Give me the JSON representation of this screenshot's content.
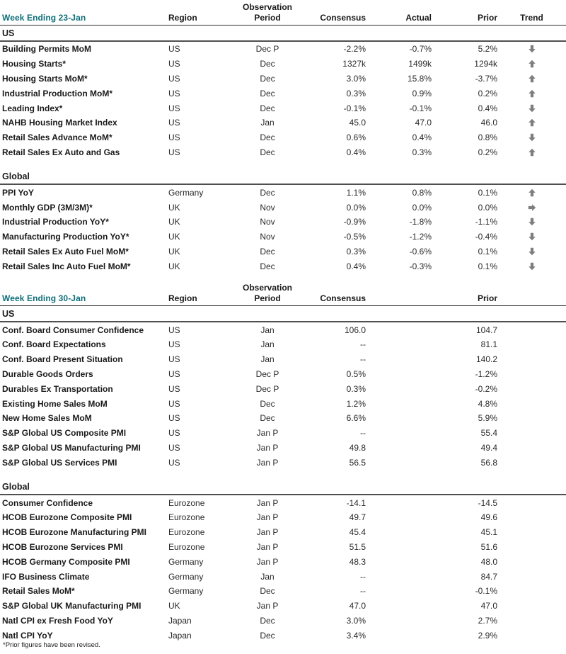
{
  "accent_color": "#0d6e78",
  "arrow_color": "#7e7e7e",
  "page": {
    "footnote": "*Prior figures have been revised."
  },
  "tables": [
    {
      "week_label": "Week Ending 23-Jan",
      "headers": {
        "region": "Region",
        "observation": "Observation",
        "period": "Period",
        "consensus": "Consensus",
        "actual": "Actual",
        "prior": "Prior",
        "trend": "Trend"
      },
      "sections": [
        {
          "label": "US",
          "rows": [
            {
              "indicator": "Building Permits MoM",
              "region": "US",
              "period": "Dec P",
              "consensus": "-2.2%",
              "actual": "-0.7%",
              "prior": "5.2%",
              "trend": "down"
            },
            {
              "indicator": "Housing Starts*",
              "region": "US",
              "period": "Dec",
              "consensus": "1327k",
              "actual": "1499k",
              "prior": "1294k",
              "trend": "up"
            },
            {
              "indicator": "Housing Starts MoM*",
              "region": "US",
              "period": "Dec",
              "consensus": "3.0%",
              "actual": "15.8%",
              "prior": "-3.7%",
              "trend": "up"
            },
            {
              "indicator": "Industrial Production MoM*",
              "region": "US",
              "period": "Dec",
              "consensus": "0.3%",
              "actual": "0.9%",
              "prior": "0.2%",
              "trend": "up"
            },
            {
              "indicator": "Leading Index*",
              "region": "US",
              "period": "Dec",
              "consensus": "-0.1%",
              "actual": "-0.1%",
              "prior": "0.4%",
              "trend": "down"
            },
            {
              "indicator": "NAHB Housing Market Index",
              "region": "US",
              "period": "Jan",
              "consensus": "45.0",
              "actual": "47.0",
              "prior": "46.0",
              "trend": "up"
            },
            {
              "indicator": "Retail Sales Advance MoM*",
              "region": "US",
              "period": "Dec",
              "consensus": "0.6%",
              "actual": "0.4%",
              "prior": "0.8%",
              "trend": "down"
            },
            {
              "indicator": "Retail Sales Ex Auto and Gas",
              "region": "US",
              "period": "Dec",
              "consensus": "0.4%",
              "actual": "0.3%",
              "prior": "0.2%",
              "trend": "up"
            }
          ]
        },
        {
          "label": "Global",
          "rows": [
            {
              "indicator": "PPI YoY",
              "region": "Germany",
              "period": "Dec",
              "consensus": "1.1%",
              "actual": "0.8%",
              "prior": "0.1%",
              "trend": "up"
            },
            {
              "indicator": "Monthly GDP (3M/3M)*",
              "region": "UK",
              "period": "Nov",
              "consensus": "0.0%",
              "actual": "0.0%",
              "prior": "0.0%",
              "trend": "flat"
            },
            {
              "indicator": "Industrial Production YoY*",
              "region": "UK",
              "period": "Nov",
              "consensus": "-0.9%",
              "actual": "-1.8%",
              "prior": "-1.1%",
              "trend": "down"
            },
            {
              "indicator": "Manufacturing Production YoY*",
              "region": "UK",
              "period": "Nov",
              "consensus": "-0.5%",
              "actual": "-1.2%",
              "prior": "-0.4%",
              "trend": "down"
            },
            {
              "indicator": "Retail Sales Ex Auto Fuel MoM*",
              "region": "UK",
              "period": "Dec",
              "consensus": "0.3%",
              "actual": "-0.6%",
              "prior": "0.1%",
              "trend": "down"
            },
            {
              "indicator": "Retail Sales Inc Auto Fuel MoM*",
              "region": "UK",
              "period": "Dec",
              "consensus": "0.4%",
              "actual": "-0.3%",
              "prior": "0.1%",
              "trend": "down"
            }
          ]
        }
      ]
    },
    {
      "week_label": "Week Ending 30-Jan",
      "headers": {
        "region": "Region",
        "observation": "Observation",
        "period": "Period",
        "consensus": "Consensus",
        "prior": "Prior"
      },
      "sections": [
        {
          "label": "US",
          "rows": [
            {
              "indicator": "Conf. Board Consumer Confidence",
              "region": "US",
              "period": "Jan",
              "consensus": "106.0",
              "prior": "104.7"
            },
            {
              "indicator": "Conf. Board Expectations",
              "region": "US",
              "period": "Jan",
              "consensus": "--",
              "prior": "81.1"
            },
            {
              "indicator": "Conf. Board Present Situation",
              "region": "US",
              "period": "Jan",
              "consensus": "--",
              "prior": "140.2"
            },
            {
              "indicator": "Durable Goods Orders",
              "region": "US",
              "period": "Dec P",
              "consensus": "0.5%",
              "prior": "-1.2%"
            },
            {
              "indicator": "Durables Ex Transportation",
              "region": "US",
              "period": "Dec P",
              "consensus": "0.3%",
              "prior": "-0.2%"
            },
            {
              "indicator": "Existing Home Sales MoM",
              "region": "US",
              "period": "Dec",
              "consensus": "1.2%",
              "prior": "4.8%"
            },
            {
              "indicator": "New Home Sales MoM",
              "region": "US",
              "period": "Dec",
              "consensus": "6.6%",
              "prior": "5.9%"
            },
            {
              "indicator": "S&P Global US Composite PMI",
              "region": "US",
              "period": "Jan P",
              "consensus": "--",
              "prior": "55.4"
            },
            {
              "indicator": "S&P Global US Manufacturing PMI",
              "region": "US",
              "period": "Jan P",
              "consensus": "49.8",
              "prior": "49.4"
            },
            {
              "indicator": "S&P Global US Services PMI",
              "region": "US",
              "period": "Jan P",
              "consensus": "56.5",
              "prior": "56.8"
            }
          ]
        },
        {
          "label": "Global",
          "rows": [
            {
              "indicator": "Consumer Confidence",
              "region": "Eurozone",
              "period": "Jan P",
              "consensus": "-14.1",
              "prior": "-14.5"
            },
            {
              "indicator": "HCOB Eurozone Composite PMI",
              "region": "Eurozone",
              "period": "Jan P",
              "consensus": "49.7",
              "prior": "49.6"
            },
            {
              "indicator": "HCOB Eurozone Manufacturing PMI",
              "region": "Eurozone",
              "period": "Jan P",
              "consensus": "45.4",
              "prior": "45.1"
            },
            {
              "indicator": "HCOB Eurozone Services PMI",
              "region": "Eurozone",
              "period": "Jan P",
              "consensus": "51.5",
              "prior": "51.6"
            },
            {
              "indicator": "HCOB Germany Composite PMI",
              "region": "Germany",
              "period": "Jan P",
              "consensus": "48.3",
              "prior": "48.0"
            },
            {
              "indicator": "IFO Business Climate",
              "region": "Germany",
              "period": "Jan",
              "consensus": "--",
              "prior": "84.7"
            },
            {
              "indicator": "Retail Sales MoM*",
              "region": "Germany",
              "period": "Dec",
              "consensus": "--",
              "prior": "-0.1%"
            },
            {
              "indicator": "S&P Global UK Manufacturing PMI",
              "region": "UK",
              "period": "Jan P",
              "consensus": "47.0",
              "prior": "47.0"
            },
            {
              "indicator": "Natl CPI ex Fresh Food YoY",
              "region": "Japan",
              "period": "Dec",
              "consensus": "3.0%",
              "prior": "2.7%"
            },
            {
              "indicator": "Natl CPI YoY",
              "region": "Japan",
              "period": "Dec",
              "consensus": "3.4%",
              "prior": "2.9%"
            }
          ]
        }
      ]
    }
  ]
}
